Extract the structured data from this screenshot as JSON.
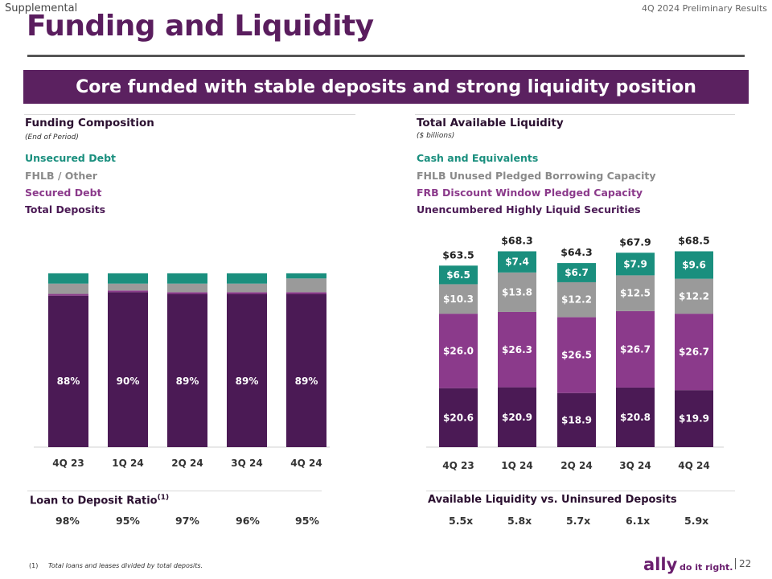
{
  "header": {
    "supplemental": "Supplemental",
    "prelim": "4Q 2024 Preliminary Results",
    "title": "Funding and Liquidity",
    "banner": "Core funded with stable deposits and strong liquidity position"
  },
  "left": {
    "title": "Funding Composition",
    "subtitle": "(End of Period)",
    "legend": [
      "Unsecured Debt",
      "FHLB / Other",
      "Secured Debt",
      "Total Deposits"
    ],
    "ldr_title": "Loan to Deposit Ratio",
    "ldr_sup": "(1)",
    "ldr_values": [
      "98%",
      "95%",
      "97%",
      "96%",
      "95%"
    ]
  },
  "right": {
    "title": "Total Available Liquidity",
    "subtitle": "($ billions)",
    "legend": [
      "Cash and Equivalents",
      "FHLB Unused Pledged Borrowing Capacity",
      "FRB Discount Window Pledged Capacity",
      "Unencumbered Highly Liquid Securities"
    ],
    "ratio_title": "Available Liquidity vs. Uninsured Deposits",
    "ratio_values": [
      "5.5x",
      "5.8x",
      "5.7x",
      "6.1x",
      "5.9x"
    ]
  },
  "footer": {
    "note_num": "(1)",
    "note": "Total loans and leases divided by total deposits.",
    "logo": "ally",
    "tagline": "do it right.",
    "page": "22"
  },
  "colors": {
    "teal": "#1a8f7e",
    "gray": "#9a9a9a",
    "purple": "#8b3a8b",
    "dark": "#4b1a55"
  },
  "chart_data": [
    {
      "type": "bar",
      "stacked": true,
      "title": "Funding Composition",
      "categories": [
        "4Q 23",
        "1Q 24",
        "2Q 24",
        "3Q 24",
        "4Q 24"
      ],
      "series": [
        {
          "name": "Total Deposits",
          "values": [
            88,
            90,
            89,
            89,
            89
          ],
          "labels": [
            "88%",
            "90%",
            "89%",
            "89%",
            "89%"
          ]
        },
        {
          "name": "Secured Debt",
          "values": [
            1,
            1,
            1,
            1,
            1
          ]
        },
        {
          "name": "FHLB / Other",
          "values": [
            6,
            4,
            5,
            5,
            8
          ]
        },
        {
          "name": "Unsecured Debt",
          "values": [
            6,
            6,
            6,
            6,
            3
          ]
        }
      ],
      "ylim": [
        0,
        100
      ]
    },
    {
      "type": "bar",
      "stacked": true,
      "title": "Total Available Liquidity",
      "subtitle": "($ billions)",
      "categories": [
        "4Q 23",
        "1Q 24",
        "2Q 24",
        "3Q 24",
        "4Q 24"
      ],
      "totals": [
        "$63.5",
        "$68.3",
        "$64.3",
        "$67.9",
        "$68.5"
      ],
      "series": [
        {
          "name": "Unencumbered Highly Liquid Securities",
          "values": [
            20.6,
            20.9,
            18.9,
            20.8,
            19.9
          ]
        },
        {
          "name": "FRB Discount Window Pledged Capacity",
          "values": [
            26.0,
            26.3,
            26.5,
            26.7,
            26.7
          ]
        },
        {
          "name": "FHLB Unused Pledged Borrowing Capacity",
          "values": [
            10.3,
            13.8,
            12.2,
            12.5,
            12.2
          ]
        },
        {
          "name": "Cash and Equivalents",
          "values": [
            6.5,
            7.4,
            6.7,
            7.9,
            9.6
          ]
        }
      ],
      "ylim": [
        0,
        68.5
      ]
    }
  ]
}
